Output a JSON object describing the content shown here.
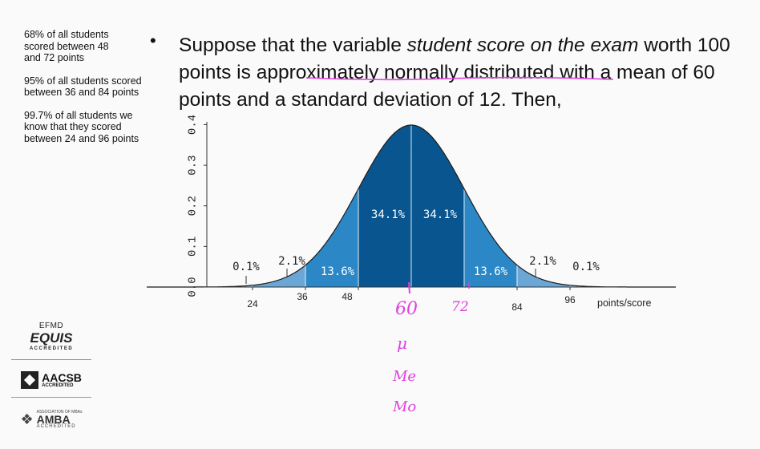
{
  "side_notes": [
    "68% of all students scored between 48 and 72 points",
    "95% of all students scored between 36 and 84 points",
    "99.7% of all students we know that they scored between 24 and 96 points"
  ],
  "main_text": {
    "part1": "Suppose that the variable ",
    "italic": "student score on the exam",
    "part2": " worth 100 points is ",
    "highlight": "approximately normally distributed",
    "part3": " with a mean of 60 points and a standard deviation of 12. Then,"
  },
  "chart_data": {
    "type": "area",
    "mean": 60,
    "sd": 12,
    "xlabel": "points/score",
    "ylabel": "",
    "x_ticks": [
      24,
      36,
      48,
      84,
      96
    ],
    "y_ticks": [
      "0.0",
      "0.1",
      "0.2",
      "0.3",
      "0.4"
    ],
    "ylim": [
      0,
      0.4
    ],
    "regions": [
      {
        "from": 48,
        "to": 60,
        "percent": "34.1%",
        "color": "#08558f"
      },
      {
        "from": 60,
        "to": 72,
        "percent": "34.1%",
        "color": "#08558f"
      },
      {
        "from": 36,
        "to": 48,
        "percent": "13.6%",
        "color": "#2b87c5"
      },
      {
        "from": 72,
        "to": 84,
        "percent": "13.6%",
        "color": "#2b87c5"
      },
      {
        "from": 24,
        "to": 36,
        "percent": "2.1%",
        "color": "#6ba7d6"
      },
      {
        "from": 84,
        "to": 96,
        "percent": "2.1%",
        "color": "#6ba7d6"
      },
      {
        "from": 0,
        "to": 24,
        "percent": "0.1%",
        "color": "#a9cde9"
      },
      {
        "from": 96,
        "to": 120,
        "percent": "0.1%",
        "color": "#a9cde9"
      }
    ],
    "handwritten": [
      "60",
      "72",
      "μ",
      "Me",
      "Mo"
    ],
    "handwritten_color": "#e040e0"
  },
  "logos": {
    "efmd": "EFMD",
    "equis": "EQUIS",
    "equis_accredited": "ACCREDITED",
    "aacsb": "AACSB",
    "aacsb_accredited": "ACCREDITED",
    "amba_association": "ASSOCIATION OF MBAs",
    "amba": "AMBA",
    "amba_accredited": "ACCREDITED"
  }
}
